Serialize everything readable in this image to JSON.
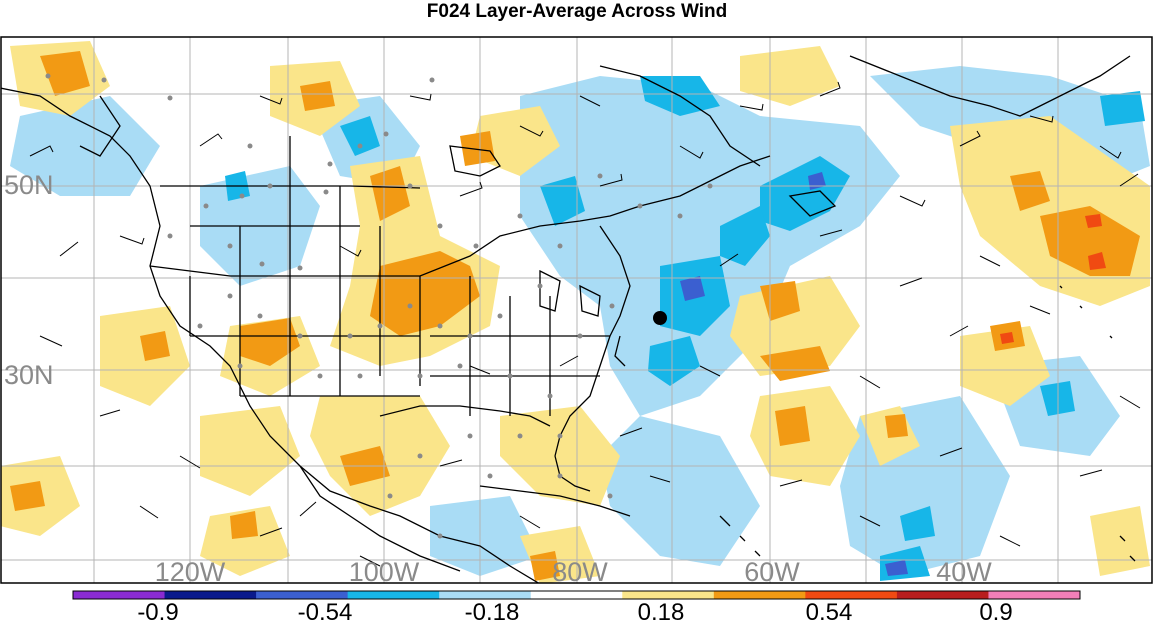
{
  "title": "F024 Layer-Average Across Wind",
  "map": {
    "lat_labels": [
      "50N",
      "30N"
    ],
    "lon_labels": [
      "120W",
      "100W",
      "80W",
      "60W",
      "40W"
    ],
    "colors": {
      "land_line": "#000000",
      "grid": "#b4b4b4",
      "obs_dot": "#8a8a8a",
      "center_dot": "#000000"
    }
  },
  "colorbar": {
    "bins": [
      {
        "color": "#8a2bd2"
      },
      {
        "color": "#0a1a8c"
      },
      {
        "color": "#3b5fd0"
      },
      {
        "color": "#17b6e8"
      },
      {
        "color": "#a9dcf5"
      },
      {
        "color": "#ffffff"
      },
      {
        "color": "#fae58a"
      },
      {
        "color": "#f29a14"
      },
      {
        "color": "#f04a12"
      },
      {
        "color": "#b81e1e"
      },
      {
        "color": "#f27fb8"
      }
    ],
    "tick_labels": [
      "-0.9",
      "-0.54",
      "-0.18",
      "0.18",
      "0.54",
      "0.9"
    ]
  }
}
